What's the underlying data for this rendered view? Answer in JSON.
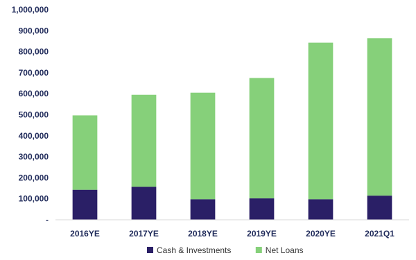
{
  "chart_data": {
    "type": "bar",
    "stacked": true,
    "title": "",
    "xlabel": "",
    "ylabel": "",
    "categories": [
      "2016YE",
      "2017YE",
      "2018YE",
      "2019YE",
      "2020YE",
      "2021Q1"
    ],
    "series": [
      {
        "name": "Cash & Investments",
        "color": "#2a1f66",
        "values": [
          143000,
          157000,
          98000,
          102000,
          98000,
          115000
        ]
      },
      {
        "name": "Net Loans",
        "color": "#86d07a",
        "values": [
          354000,
          438000,
          507000,
          573000,
          745000,
          749000
        ]
      }
    ],
    "ylim": [
      0,
      1000000
    ],
    "yticks": [
      0,
      100000,
      200000,
      300000,
      400000,
      500000,
      600000,
      700000,
      800000,
      900000,
      1000000
    ],
    "ytick_labels": [
      "-",
      "100,000",
      "200,000",
      "300,000",
      "400,000",
      "500,000",
      "600,000",
      "700,000",
      "800,000",
      "900,000",
      "1,000,000"
    ],
    "grid": false,
    "legend_position": "bottom"
  }
}
